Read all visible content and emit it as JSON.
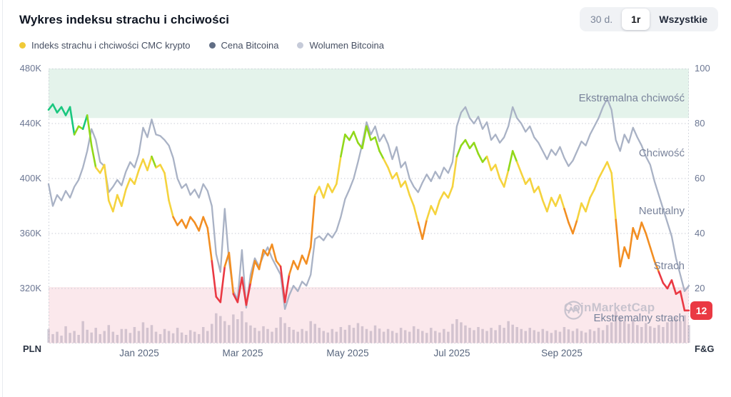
{
  "header": {
    "title": "Wykres indeksu strachu i chciwości",
    "range_buttons": [
      {
        "label": "30 d.",
        "active": false
      },
      {
        "label": "1r",
        "active": true
      },
      {
        "label": "Wszystkie",
        "active": false
      }
    ]
  },
  "legend": {
    "items": [
      {
        "label": "Indeks strachu i chciwości CMC krypto",
        "color": "#F0CA38"
      },
      {
        "label": "Cena Bitcoina",
        "color": "#616E85"
      },
      {
        "label": "Wolumen Bitcoina",
        "color": "#C6CBD9"
      }
    ]
  },
  "axes": {
    "left": {
      "ticks": [
        "480K",
        "440K",
        "400K",
        "360K",
        "320K"
      ],
      "unit": "PLN"
    },
    "right": {
      "ticks": [
        "100",
        "80",
        "60",
        "40",
        "20"
      ],
      "unit": "F&G"
    },
    "x": {
      "ticks": [
        "Jan 2025",
        "Mar 2025",
        "May 2025",
        "Jul 2025",
        "Sep 2025"
      ]
    }
  },
  "zones": [
    {
      "label": "Ekstremalna chciwość",
      "fg": 89
    },
    {
      "label": "Chciwość",
      "fg": 69
    },
    {
      "label": "Neutralny",
      "fg": 48
    },
    {
      "label": "Strach",
      "fg": 28
    },
    {
      "label": "Ekstremalny strach",
      "fg": 9
    }
  ],
  "badge": {
    "value": "12",
    "color": "#EA3943"
  },
  "watermark": "CoinMarketCap",
  "chart_data": {
    "type": "line",
    "title": "Wykres indeksu strachu i chciwości",
    "x_range": [
      "Nov 2024",
      "Nov 2025"
    ],
    "x_tick_labels": [
      "Jan 2025",
      "Mar 2025",
      "May 2025",
      "Jul 2025",
      "Sep 2025"
    ],
    "y_left": {
      "label": "PLN",
      "ticks": [
        480,
        440,
        400,
        360,
        320
      ],
      "unit": "K PLN",
      "range": [
        300,
        480
      ]
    },
    "y_right": {
      "label": "F&G",
      "ticks": [
        100,
        80,
        60,
        40,
        20
      ],
      "range": [
        0,
        100
      ]
    },
    "grid": "dotted-horizontal",
    "legend_position": "top-left",
    "current_value": 12,
    "bands": [
      {
        "name": "extreme-greed",
        "from": 82,
        "to": 100,
        "color": "#E4F3EB"
      },
      {
        "name": "extreme-fear",
        "from": 0,
        "to": 20.5,
        "color": "#FBE8EC"
      }
    ],
    "fg_color_scale": [
      {
        "max": 25,
        "color": "#EA3943"
      },
      {
        "max": 47,
        "color": "#F28E22"
      },
      {
        "max": 66,
        "color": "#F5D33E"
      },
      {
        "max": 80,
        "color": "#91D81A"
      },
      {
        "max": 101,
        "color": "#1AC77F"
      }
    ],
    "btc_line_color": "#A9B2C5",
    "volume_bar_color": "#9A8FA8",
    "series": [
      {
        "name": "Indeks strachu i chciwości CMC krypto",
        "axis": "right",
        "values": [
          85,
          87,
          84,
          86,
          83,
          86,
          76,
          79,
          78,
          83,
          72,
          64,
          62,
          65,
          52,
          48,
          54,
          50,
          56,
          60,
          58,
          63,
          67,
          63,
          68,
          64,
          65,
          62,
          52,
          46,
          43,
          45,
          42,
          46,
          44,
          41,
          46,
          42,
          30,
          17,
          15,
          28,
          33,
          18,
          15,
          24,
          14,
          22,
          30,
          27,
          34,
          32,
          36,
          30,
          28,
          15,
          25,
          30,
          27,
          32,
          29,
          35,
          54,
          57,
          53,
          58,
          55,
          58,
          68,
          76,
          74,
          77,
          73,
          71,
          79,
          74,
          75,
          70,
          67,
          64,
          60,
          62,
          57,
          59,
          54,
          50,
          44,
          38,
          45,
          50,
          47,
          52,
          55,
          53,
          57,
          68,
          72,
          74,
          71,
          73,
          69,
          66,
          68,
          63,
          65,
          60,
          57,
          63,
          70,
          66,
          62,
          58,
          60,
          55,
          57,
          52,
          48,
          53,
          50,
          54,
          49,
          44,
          40,
          45,
          51,
          48,
          53,
          56,
          60,
          63,
          66,
          62,
          45,
          28,
          35,
          31,
          42,
          38,
          44,
          40,
          35,
          30,
          26,
          22,
          20,
          23,
          18,
          19,
          12,
          12
        ]
      },
      {
        "name": "Cena Bitcoina",
        "axis": "left",
        "unit": "K PLN",
        "values": [
          396,
          380,
          388,
          384,
          391,
          386,
          394,
          399,
          408,
          420,
          436,
          428,
          412,
          409,
          390,
          394,
          399,
          395,
          405,
          412,
          408,
          418,
          437,
          430,
          443,
          432,
          431,
          428,
          424,
          415,
          400,
          393,
          396,
          388,
          392,
          386,
          396,
          391,
          380,
          345,
          332,
          378,
          340,
          318,
          312,
          348,
          306,
          330,
          342,
          336,
          344,
          350,
          342,
          336,
          330,
          305,
          315,
          322,
          318,
          325,
          322,
          330,
          356,
          358,
          355,
          360,
          357,
          362,
          372,
          385,
          392,
          400,
          412,
          425,
          441,
          432,
          438,
          427,
          432,
          425,
          414,
          423,
          408,
          412,
          400,
          394,
          390,
          397,
          403,
          398,
          405,
          400,
          408,
          404,
          412,
          438,
          448,
          452,
          444,
          440,
          445,
          436,
          441,
          428,
          432,
          426,
          430,
          438,
          452,
          444,
          440,
          434,
          438,
          430,
          426,
          420,
          414,
          421,
          417,
          423,
          415,
          409,
          413,
          420,
          427,
          424,
          432,
          438,
          444,
          452,
          458,
          450,
          428,
          420,
          432,
          426,
          437,
          430,
          424,
          416,
          410,
          398,
          388,
          378,
          368,
          358,
          342,
          330,
          318,
          322
        ]
      },
      {
        "name": "Wolumen Bitcoina",
        "axis": "volume",
        "values": [
          0.35,
          0.22,
          0.28,
          0.18,
          0.42,
          0.25,
          0.3,
          0.2,
          0.55,
          0.33,
          0.26,
          0.38,
          0.22,
          0.3,
          0.45,
          0.28,
          0.2,
          0.35,
          0.35,
          0.25,
          0.4,
          0.3,
          0.52,
          0.38,
          0.45,
          0.28,
          0.22,
          0.35,
          0.3,
          0.24,
          0.38,
          0.26,
          0.2,
          0.32,
          0.28,
          0.22,
          0.4,
          0.3,
          0.48,
          0.75,
          0.68,
          0.55,
          0.45,
          0.72,
          0.6,
          0.8,
          0.52,
          0.44,
          0.38,
          0.3,
          0.42,
          0.35,
          0.28,
          0.38,
          0.65,
          0.5,
          0.4,
          0.33,
          0.28,
          0.35,
          0.3,
          0.55,
          0.48,
          0.38,
          0.3,
          0.26,
          0.35,
          0.28,
          0.4,
          0.33,
          0.45,
          0.38,
          0.5,
          0.42,
          0.35,
          0.3,
          0.44,
          0.36,
          0.28,
          0.35,
          0.3,
          0.25,
          0.38,
          0.32,
          0.28,
          0.42,
          0.35,
          0.3,
          0.25,
          0.38,
          0.3,
          0.26,
          0.35,
          0.28,
          0.48,
          0.6,
          0.52,
          0.44,
          0.38,
          0.32,
          0.4,
          0.35,
          0.3,
          0.38,
          0.32,
          0.45,
          0.38,
          0.55,
          0.46,
          0.4,
          0.35,
          0.3,
          0.38,
          0.32,
          0.28,
          0.35,
          0.3,
          0.25,
          0.32,
          0.28,
          0.4,
          0.34,
          0.3,
          0.36,
          0.3,
          0.26,
          0.34,
          0.3,
          0.38,
          0.32,
          0.45,
          0.52,
          0.8,
          0.65,
          0.55,
          0.48,
          0.58,
          0.45,
          0.4,
          0.5,
          0.42,
          0.38,
          0.45,
          0.4,
          0.52,
          0.58,
          0.65,
          0.55,
          0.7,
          0.45
        ]
      }
    ]
  }
}
